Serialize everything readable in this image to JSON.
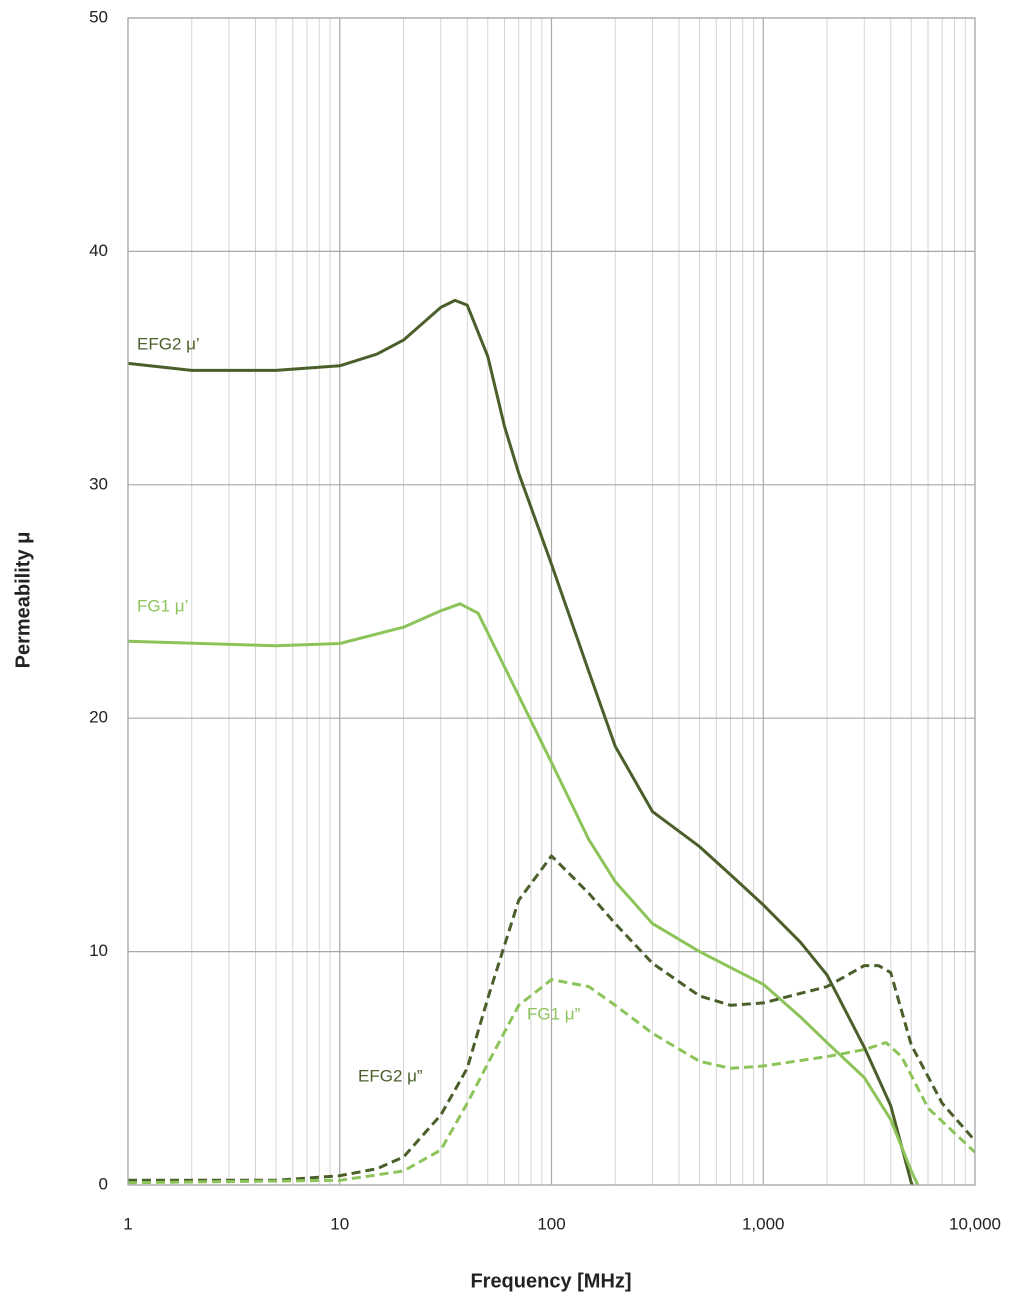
{
  "chart_data": {
    "type": "line",
    "x_label": "Frequency [MHz]",
    "y_label": "Permeability μ",
    "xscale": "log",
    "xlim": [
      1,
      10000
    ],
    "xticks": [
      1,
      10,
      100,
      {
        "value": 1000,
        "label": "1,000"
      },
      {
        "value": 10000,
        "label": "10,000"
      }
    ],
    "ylim": [
      0,
      50
    ],
    "yticks": [
      0,
      10,
      20,
      30,
      40,
      50
    ],
    "grid": true,
    "series": [
      {
        "name": "EFG2 μ’",
        "color": "#4b5f2b",
        "dash": false,
        "x": [
          1,
          2,
          5,
          10,
          15,
          20,
          30,
          35,
          40,
          50,
          60,
          70,
          100,
          150,
          200,
          300,
          500,
          700,
          1000,
          1500,
          2000,
          3000,
          4000,
          5000,
          5500
        ],
        "values": [
          35.2,
          34.9,
          34.9,
          35.1,
          35.6,
          36.2,
          37.6,
          37.9,
          37.7,
          35.5,
          32.5,
          30.5,
          26.6,
          22,
          18.8,
          16,
          14.5,
          13.3,
          12,
          10.4,
          9,
          5.9,
          3.4,
          0.1,
          -0.8
        ]
      },
      {
        "name": "FG1 μ’",
        "color": "#8cc45a",
        "dash": false,
        "x": [
          1,
          5,
          10,
          20,
          30,
          37,
          45,
          60,
          100,
          150,
          200,
          300,
          500,
          1000,
          1500,
          2000,
          3000,
          4000,
          5000,
          5500
        ],
        "values": [
          23.3,
          23.1,
          23.2,
          23.9,
          24.6,
          24.9,
          24.5,
          22.2,
          18.1,
          14.8,
          13,
          11.2,
          10,
          8.6,
          7.2,
          6.1,
          4.6,
          2.8,
          0.6,
          -0.2
        ]
      },
      {
        "name": "EFG2 μ”",
        "color": "#4b5f2b",
        "dash": true,
        "x": [
          1,
          5,
          10,
          15,
          20,
          30,
          40,
          50,
          70,
          100,
          150,
          200,
          300,
          500,
          700,
          1000,
          2000,
          3000,
          3500,
          4000,
          5000,
          7000,
          10000
        ],
        "values": [
          0.2,
          0.2,
          0.4,
          0.7,
          1.2,
          3,
          5,
          8,
          12.2,
          14.1,
          12.5,
          11.2,
          9.5,
          8.1,
          7.7,
          7.8,
          8.5,
          9.4,
          9.4,
          9.1,
          6,
          3.5,
          1.9
        ]
      },
      {
        "name": "FG1 μ”",
        "color": "#8cc45a",
        "dash": true,
        "x": [
          1,
          10,
          20,
          30,
          40,
          50,
          70,
          100,
          150,
          200,
          300,
          500,
          700,
          1000,
          2000,
          3000,
          3800,
          4500,
          6000,
          10000
        ],
        "values": [
          0.1,
          0.2,
          0.6,
          1.5,
          3.5,
          5.2,
          7.7,
          8.8,
          8.5,
          7.7,
          6.5,
          5.3,
          5,
          5.1,
          5.5,
          5.8,
          6.1,
          5.5,
          3.3,
          1.4
        ]
      }
    ]
  }
}
